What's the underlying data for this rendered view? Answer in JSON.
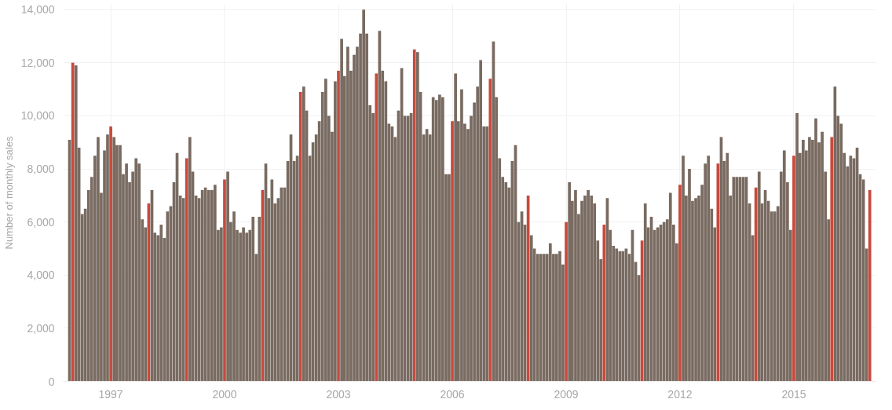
{
  "chart_data": {
    "type": "bar",
    "ylabel": "Number of monthly sales",
    "x": [
      "1995-12",
      "1996-01",
      "1996-02",
      "1996-03",
      "1996-04",
      "1996-05",
      "1996-06",
      "1996-07",
      "1996-08",
      "1996-09",
      "1996-10",
      "1996-11",
      "1996-12",
      "1997-01",
      "1997-02",
      "1997-03",
      "1997-04",
      "1997-05",
      "1997-06",
      "1997-07",
      "1997-08",
      "1997-09",
      "1997-10",
      "1997-11",
      "1997-12",
      "1998-01",
      "1998-02",
      "1998-03",
      "1998-04",
      "1998-05",
      "1998-06",
      "1998-07",
      "1998-08",
      "1998-09",
      "1998-10",
      "1998-11",
      "1998-12",
      "1999-01",
      "1999-02",
      "1999-03",
      "1999-04",
      "1999-05",
      "1999-06",
      "1999-07",
      "1999-08",
      "1999-09",
      "1999-10",
      "1999-11",
      "1999-12",
      "2000-01",
      "2000-02",
      "2000-03",
      "2000-04",
      "2000-05",
      "2000-06",
      "2000-07",
      "2000-08",
      "2000-09",
      "2000-10",
      "2000-11",
      "2000-12",
      "2001-01",
      "2001-02",
      "2001-03",
      "2001-04",
      "2001-05",
      "2001-06",
      "2001-07",
      "2001-08",
      "2001-09",
      "2001-10",
      "2001-11",
      "2001-12",
      "2002-01",
      "2002-02",
      "2002-03",
      "2002-04",
      "2002-05",
      "2002-06",
      "2002-07",
      "2002-08",
      "2002-09",
      "2002-10",
      "2002-11",
      "2002-12",
      "2003-01",
      "2003-02",
      "2003-03",
      "2003-04",
      "2003-05",
      "2003-06",
      "2003-07",
      "2003-08",
      "2003-09",
      "2003-10",
      "2003-11",
      "2003-12",
      "2004-01",
      "2004-02",
      "2004-03",
      "2004-04",
      "2004-05",
      "2004-06",
      "2004-07",
      "2004-08",
      "2004-09",
      "2004-10",
      "2004-11",
      "2004-12",
      "2005-01",
      "2005-02",
      "2005-03",
      "2005-04",
      "2005-05",
      "2005-06",
      "2005-07",
      "2005-08",
      "2005-09",
      "2005-10",
      "2005-11",
      "2005-12",
      "2006-01",
      "2006-02",
      "2006-03",
      "2006-04",
      "2006-05",
      "2006-06",
      "2006-07",
      "2006-08",
      "2006-09",
      "2006-10",
      "2006-11",
      "2006-12",
      "2007-01",
      "2007-02",
      "2007-03",
      "2007-04",
      "2007-05",
      "2007-06",
      "2007-07",
      "2007-08",
      "2007-09",
      "2007-10",
      "2007-11",
      "2007-12",
      "2008-01",
      "2008-02",
      "2008-03",
      "2008-04",
      "2008-05",
      "2008-06",
      "2008-07",
      "2008-08",
      "2008-09",
      "2008-10",
      "2008-11",
      "2008-12",
      "2009-01",
      "2009-02",
      "2009-03",
      "2009-04",
      "2009-05",
      "2009-06",
      "2009-07",
      "2009-08",
      "2009-09",
      "2009-10",
      "2009-11",
      "2009-12",
      "2010-01",
      "2010-02",
      "2010-03",
      "2010-04",
      "2010-05",
      "2010-06",
      "2010-07",
      "2010-08",
      "2010-09",
      "2010-10",
      "2010-11",
      "2010-12",
      "2011-01",
      "2011-02",
      "2011-03",
      "2011-04",
      "2011-05",
      "2011-06",
      "2011-07",
      "2011-08",
      "2011-09",
      "2011-10",
      "2011-11",
      "2011-12",
      "2012-01",
      "2012-02",
      "2012-03",
      "2012-04",
      "2012-05",
      "2012-06",
      "2012-07",
      "2012-08",
      "2012-09",
      "2012-10",
      "2012-11",
      "2012-12",
      "2013-01",
      "2013-02",
      "2013-03",
      "2013-04",
      "2013-05",
      "2013-06",
      "2013-07",
      "2013-08",
      "2013-09",
      "2013-10",
      "2013-11",
      "2013-12",
      "2014-01",
      "2014-02",
      "2014-03",
      "2014-04",
      "2014-05",
      "2014-06",
      "2014-07",
      "2014-08",
      "2014-09",
      "2014-10",
      "2014-11",
      "2014-12",
      "2015-01",
      "2015-02",
      "2015-03",
      "2015-04",
      "2015-05",
      "2015-06",
      "2015-07",
      "2015-08",
      "2015-09",
      "2015-10",
      "2015-11",
      "2015-12",
      "2016-01",
      "2016-02",
      "2016-03",
      "2016-04",
      "2016-05",
      "2016-06",
      "2016-07",
      "2016-08",
      "2016-09",
      "2016-10",
      "2016-11",
      "2016-12",
      "2017-01"
    ],
    "values": [
      9100,
      12000,
      11900,
      8800,
      6300,
      6500,
      7200,
      7700,
      8500,
      9200,
      7100,
      8700,
      9300,
      9600,
      9200,
      8900,
      8900,
      7800,
      8200,
      7500,
      7900,
      8400,
      8200,
      6100,
      5800,
      6700,
      7200,
      5600,
      5500,
      5900,
      5400,
      6400,
      6600,
      7500,
      8600,
      7000,
      6900,
      8400,
      9200,
      7900,
      7000,
      6900,
      7200,
      7300,
      7200,
      7200,
      7400,
      5700,
      5800,
      7600,
      7900,
      6000,
      6400,
      5700,
      5600,
      5800,
      5600,
      5700,
      6200,
      4800,
      6200,
      7200,
      8200,
      6900,
      7600,
      6700,
      6900,
      7300,
      7300,
      8300,
      9300,
      8300,
      8500,
      10900,
      11100,
      10200,
      8500,
      9000,
      9300,
      9800,
      10900,
      11400,
      10000,
      9400,
      11300,
      11700,
      12900,
      11500,
      12600,
      11700,
      12300,
      12600,
      13100,
      14000,
      13100,
      10400,
      10100,
      11600,
      13200,
      11700,
      11300,
      9700,
      9600,
      9200,
      10200,
      11800,
      10000,
      10000,
      10100,
      12500,
      12400,
      10900,
      9300,
      9500,
      9300,
      10700,
      10600,
      10800,
      10700,
      7800,
      7800,
      9800,
      11600,
      9800,
      11000,
      9700,
      9500,
      10000,
      10500,
      11100,
      12100,
      9600,
      9600,
      11400,
      12800,
      10700,
      8400,
      7700,
      7500,
      7300,
      8300,
      8900,
      6000,
      6400,
      5900,
      7000,
      5500,
      5000,
      4800,
      4800,
      4800,
      4800,
      5200,
      4800,
      4800,
      4900,
      4400,
      6000,
      7500,
      6800,
      7200,
      6300,
      6800,
      7000,
      7200,
      7000,
      6700,
      5300,
      4600,
      5900,
      6900,
      5700,
      5100,
      5000,
      4900,
      4900,
      5000,
      4800,
      5700,
      4500,
      4000,
      5300,
      6700,
      5800,
      6200,
      5700,
      5800,
      5900,
      6000,
      6100,
      7100,
      5900,
      5200,
      7400,
      8500,
      7000,
      8000,
      6800,
      6900,
      7000,
      7400,
      8200,
      8500,
      6500,
      5800,
      8200,
      9200,
      8300,
      8600,
      7000,
      7700,
      7700,
      7700,
      7700,
      7700,
      6700,
      5500,
      7300,
      7900,
      6700,
      7200,
      6800,
      6400,
      6400,
      6600,
      7900,
      8700,
      7500,
      5700,
      8500,
      10100,
      8600,
      9100,
      8700,
      9200,
      9100,
      9900,
      9000,
      9400,
      7900,
      6100,
      9200,
      11100,
      10000,
      9700,
      8600,
      8100,
      8500,
      8400,
      8800,
      7800,
      7600,
      5000,
      7200
    ],
    "colors": [
      "#796b61",
      "#c9493c",
      "#796b61",
      "#796b61",
      "#796b61",
      "#796b61",
      "#796b61",
      "#796b61",
      "#796b61",
      "#796b61",
      "#796b61",
      "#796b61",
      "#796b61",
      "#c9493c",
      "#796b61",
      "#796b61",
      "#796b61",
      "#796b61",
      "#796b61",
      "#796b61",
      "#796b61",
      "#796b61",
      "#796b61",
      "#796b61",
      "#796b61",
      "#c9493c",
      "#796b61",
      "#796b61",
      "#796b61",
      "#796b61",
      "#796b61",
      "#796b61",
      "#796b61",
      "#796b61",
      "#796b61",
      "#796b61",
      "#796b61",
      "#c9493c",
      "#796b61",
      "#796b61",
      "#796b61",
      "#796b61",
      "#796b61",
      "#796b61",
      "#796b61",
      "#796b61",
      "#796b61",
      "#796b61",
      "#796b61",
      "#c9493c",
      "#796b61",
      "#796b61",
      "#796b61",
      "#796b61",
      "#796b61",
      "#796b61",
      "#796b61",
      "#796b61",
      "#796b61",
      "#796b61",
      "#796b61",
      "#c9493c",
      "#796b61",
      "#796b61",
      "#796b61",
      "#796b61",
      "#796b61",
      "#796b61",
      "#796b61",
      "#796b61",
      "#796b61",
      "#796b61",
      "#796b61",
      "#c9493c",
      "#796b61",
      "#796b61",
      "#796b61",
      "#796b61",
      "#796b61",
      "#796b61",
      "#796b61",
      "#796b61",
      "#796b61",
      "#796b61",
      "#796b61",
      "#c9493c",
      "#796b61",
      "#796b61",
      "#796b61",
      "#796b61",
      "#796b61",
      "#796b61",
      "#796b61",
      "#796b61",
      "#796b61",
      "#796b61",
      "#796b61",
      "#c9493c",
      "#796b61",
      "#796b61",
      "#796b61",
      "#796b61",
      "#796b61",
      "#796b61",
      "#796b61",
      "#796b61",
      "#796b61",
      "#796b61",
      "#796b61",
      "#c9493c",
      "#796b61",
      "#796b61",
      "#796b61",
      "#796b61",
      "#796b61",
      "#796b61",
      "#796b61",
      "#796b61",
      "#796b61",
      "#796b61",
      "#796b61",
      "#c9493c",
      "#796b61",
      "#796b61",
      "#796b61",
      "#796b61",
      "#796b61",
      "#796b61",
      "#796b61",
      "#796b61",
      "#796b61",
      "#796b61",
      "#796b61",
      "#c9493c",
      "#796b61",
      "#796b61",
      "#796b61",
      "#796b61",
      "#796b61",
      "#796b61",
      "#796b61",
      "#796b61",
      "#796b61",
      "#796b61",
      "#796b61",
      "#c9493c",
      "#796b61",
      "#796b61",
      "#796b61",
      "#796b61",
      "#796b61",
      "#796b61",
      "#796b61",
      "#796b61",
      "#796b61",
      "#796b61",
      "#796b61",
      "#c9493c",
      "#796b61",
      "#796b61",
      "#796b61",
      "#796b61",
      "#796b61",
      "#796b61",
      "#796b61",
      "#796b61",
      "#796b61",
      "#796b61",
      "#796b61",
      "#c9493c",
      "#796b61",
      "#796b61",
      "#796b61",
      "#796b61",
      "#796b61",
      "#796b61",
      "#796b61",
      "#796b61",
      "#796b61",
      "#796b61",
      "#796b61",
      "#c9493c",
      "#796b61",
      "#796b61",
      "#796b61",
      "#796b61",
      "#796b61",
      "#796b61",
      "#796b61",
      "#796b61",
      "#796b61",
      "#796b61",
      "#796b61",
      "#c9493c",
      "#796b61",
      "#796b61",
      "#796b61",
      "#796b61",
      "#796b61",
      "#796b61",
      "#796b61",
      "#796b61",
      "#796b61",
      "#796b61",
      "#796b61",
      "#c9493c",
      "#796b61",
      "#796b61",
      "#796b61",
      "#796b61",
      "#796b61",
      "#796b61",
      "#796b61",
      "#796b61",
      "#796b61",
      "#796b61",
      "#796b61",
      "#c9493c",
      "#796b61",
      "#796b61",
      "#796b61",
      "#796b61",
      "#796b61",
      "#796b61",
      "#796b61",
      "#796b61",
      "#796b61",
      "#796b61",
      "#796b61",
      "#c9493c",
      "#796b61",
      "#796b61",
      "#796b61",
      "#796b61",
      "#796b61",
      "#796b61",
      "#796b61",
      "#796b61",
      "#796b61",
      "#796b61",
      "#796b61",
      "#c9493c",
      "#796b61",
      "#796b61",
      "#796b61",
      "#796b61",
      "#796b61",
      "#796b61",
      "#796b61",
      "#796b61",
      "#796b61",
      "#796b61",
      "#796b61",
      "#c9493c"
    ],
    "xlim": [
      "1995-10",
      "2017-03"
    ],
    "xticks": [
      "1997",
      "2000",
      "2003",
      "2006",
      "2009",
      "2012",
      "2015"
    ],
    "ylim": [
      0,
      14200
    ],
    "yticks": [
      {
        "value": 0,
        "label": "0"
      },
      {
        "value": 2000,
        "label": "2,000"
      },
      {
        "value": 4000,
        "label": "4,000"
      },
      {
        "value": 6000,
        "label": "6,000"
      },
      {
        "value": 8000,
        "label": "8,000"
      },
      {
        "value": 10000,
        "label": "10,000"
      },
      {
        "value": 12000,
        "label": "12,000"
      },
      {
        "value": 14000,
        "label": "14,000"
      }
    ],
    "grid": true
  }
}
